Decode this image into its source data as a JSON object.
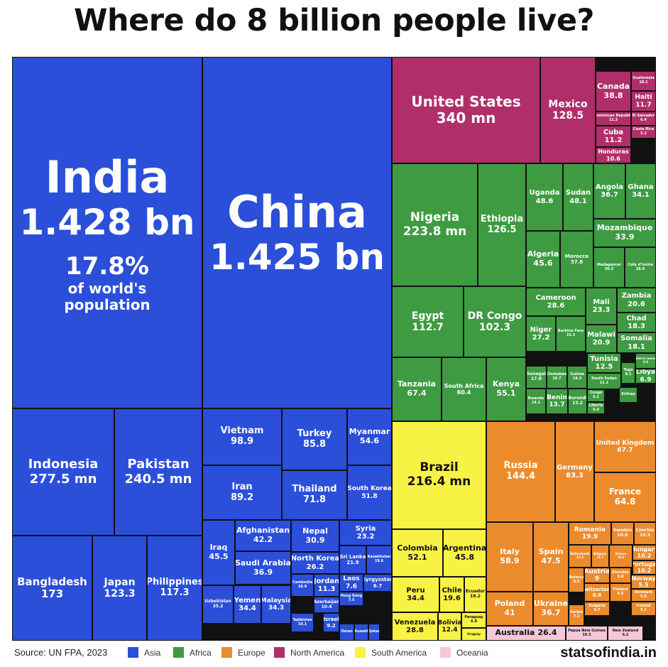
{
  "title": "Where do 8 billion people live?",
  "source": "Source: UN FPA, 2023",
  "brand": "statsofindia.in",
  "colors": {
    "Asia": "#2b4fd9",
    "Africa": "#3e9b42",
    "Europe": "#ec8b2c",
    "North America": "#b02f6a",
    "South America": "#f8f244",
    "Oceania": "#f7c7d7"
  },
  "legend": [
    "Asia",
    "Africa",
    "Europe",
    "North America",
    "South America",
    "Oceania"
  ],
  "chart_data": {
    "type": "treemap",
    "title": "Where do 8 billion people live?",
    "unit": "million people",
    "items": [
      {
        "name": "India",
        "value": 1428,
        "label": "1.428 bn",
        "note": [
          "17.8%",
          "of world's",
          "population"
        ],
        "region": "Asia"
      },
      {
        "name": "China",
        "value": 1425,
        "label": "1.425 bn",
        "region": "Asia"
      },
      {
        "name": "Indonesia",
        "value": 277.5,
        "label": "277.5 mn",
        "region": "Asia"
      },
      {
        "name": "Pakistan",
        "value": 240.5,
        "label": "240.5 mn",
        "region": "Asia"
      },
      {
        "name": "Bangladesh",
        "value": 173,
        "label": "173",
        "region": "Asia"
      },
      {
        "name": "Japan",
        "value": 123.3,
        "label": "123.3",
        "region": "Asia"
      },
      {
        "name": "Philippines",
        "value": 117.3,
        "label": "117.3",
        "region": "Asia"
      },
      {
        "name": "Vietnam",
        "value": 98.9,
        "label": "98.9",
        "region": "Asia"
      },
      {
        "name": "Turkey",
        "value": 85.8,
        "label": "85.8",
        "region": "Asia"
      },
      {
        "name": "Myanmar",
        "value": 54.6,
        "label": "54.6",
        "region": "Asia"
      },
      {
        "name": "Iran",
        "value": 89.2,
        "label": "89.2",
        "region": "Asia"
      },
      {
        "name": "Thailand",
        "value": 71.8,
        "label": "71.8",
        "region": "Asia"
      },
      {
        "name": "South Korea",
        "value": 51.8,
        "label": "51.8",
        "region": "Asia"
      },
      {
        "name": "Iraq",
        "value": 45.5,
        "label": "45.5",
        "region": "Asia"
      },
      {
        "name": "Afghanistan",
        "value": 42.2,
        "label": "42.2",
        "region": "Asia"
      },
      {
        "name": "Nepal",
        "value": 30.9,
        "label": "30.9",
        "region": "Asia"
      },
      {
        "name": "Syria",
        "value": 23.2,
        "label": "23.2",
        "region": "Asia"
      },
      {
        "name": "Saudi Arabia",
        "value": 36.9,
        "label": "36.9",
        "region": "Asia"
      },
      {
        "name": "North Korea",
        "value": 26.2,
        "label": "26.2",
        "region": "Asia"
      },
      {
        "name": "Sri Lanka",
        "value": 21.9,
        "label": "21.9",
        "region": "Asia"
      },
      {
        "name": "Kazakhstan",
        "value": 19.6,
        "label": "19.6",
        "region": "Asia"
      },
      {
        "name": "Jordan",
        "value": 11.3,
        "label": "11.3",
        "region": "Asia"
      },
      {
        "name": "Laos",
        "value": 7.6,
        "label": "7.6",
        "region": "Asia"
      },
      {
        "name": "Kyrgyzstan",
        "value": 6.7,
        "label": "6.7",
        "region": "Asia"
      },
      {
        "name": "Uzbekistan",
        "value": 35.2,
        "label": "35.2",
        "region": "Asia"
      },
      {
        "name": "Yemen",
        "value": 34.4,
        "label": "34.4",
        "region": "Asia"
      },
      {
        "name": "Malaysia",
        "value": 34.3,
        "label": "34.3",
        "region": "Asia"
      },
      {
        "name": "Cambodia",
        "value": 16.9,
        "label": "16.9",
        "region": "Asia"
      },
      {
        "name": "Azerbaijan",
        "value": 10.4,
        "label": "10.4",
        "region": "Asia"
      },
      {
        "name": "Hong Kong",
        "value": 7.5,
        "label": "7.5",
        "region": "Asia"
      },
      {
        "name": "Tajikistan",
        "value": 10.1,
        "label": "10.1",
        "region": "Asia"
      },
      {
        "name": "Israel",
        "value": 9.2,
        "label": "9.2",
        "region": "Asia"
      },
      {
        "name": "Oman",
        "value": null,
        "label": "",
        "region": "Asia"
      },
      {
        "name": "Kuwait",
        "value": null,
        "label": "",
        "region": "Asia"
      },
      {
        "name": "Qatar",
        "value": null,
        "label": "",
        "region": "Asia"
      },
      {
        "name": "United States",
        "value": 340,
        "label": "340 mn",
        "region": "North America"
      },
      {
        "name": "Mexico",
        "value": 128.5,
        "label": "128.5",
        "region": "North America"
      },
      {
        "name": "Canada",
        "value": 38.8,
        "label": "38.8",
        "region": "North America"
      },
      {
        "name": "Guatemala",
        "value": 18.1,
        "label": "18.1",
        "region": "North America"
      },
      {
        "name": "Haiti",
        "value": 11.7,
        "label": "11.7",
        "region": "North America"
      },
      {
        "name": "Dominican Republic",
        "value": 11.3,
        "label": "11.3",
        "region": "North America"
      },
      {
        "name": "El Salvador",
        "value": 6.4,
        "label": "6.4",
        "region": "North America"
      },
      {
        "name": "Cuba",
        "value": 11.2,
        "label": "11.2",
        "region": "North America"
      },
      {
        "name": "Honduras",
        "value": 10.6,
        "label": "10.6",
        "region": "North America"
      },
      {
        "name": "Costa Rica",
        "value": 5.2,
        "label": "5.2",
        "region": "North America"
      },
      {
        "name": "Nigeria",
        "value": 223.8,
        "label": "223.8 mn",
        "region": "Africa"
      },
      {
        "name": "Ethiopia",
        "value": 126.5,
        "label": "126.5",
        "region": "Africa"
      },
      {
        "name": "Uganda",
        "value": 48.6,
        "label": "48.6",
        "region": "Africa"
      },
      {
        "name": "Sudan",
        "value": 48.1,
        "label": "48.1",
        "region": "Africa"
      },
      {
        "name": "Angola",
        "value": 36.7,
        "label": "36.7",
        "region": "Africa"
      },
      {
        "name": "Ghana",
        "value": 34.1,
        "label": "34.1",
        "region": "Africa"
      },
      {
        "name": "Mozambique",
        "value": 33.9,
        "label": "33.9",
        "region": "Africa"
      },
      {
        "name": "Algeria",
        "value": 45.6,
        "label": "45.6",
        "region": "Africa"
      },
      {
        "name": "Morocco",
        "value": 37.8,
        "label": "37.8",
        "region": "Africa"
      },
      {
        "name": "Madagascar",
        "value": 30.3,
        "label": "30.3",
        "region": "Africa"
      },
      {
        "name": "Cote d'Ivoire",
        "value": 28.9,
        "label": "28.9",
        "region": "Africa"
      },
      {
        "name": "Egypt",
        "value": 112.7,
        "label": "112.7",
        "region": "Africa"
      },
      {
        "name": "DR Congo",
        "value": 102.3,
        "label": "102.3",
        "region": "Africa"
      },
      {
        "name": "Cameroon",
        "value": 28.6,
        "label": "28.6",
        "region": "Africa"
      },
      {
        "name": "Mali",
        "value": 23.3,
        "label": "23.3",
        "region": "Africa"
      },
      {
        "name": "Zambia",
        "value": 20.6,
        "label": "20.6",
        "region": "Africa"
      },
      {
        "name": "Niger",
        "value": 27.2,
        "label": "27.2",
        "region": "Africa"
      },
      {
        "name": "Burkina Faso",
        "value": 23.3,
        "label": "23.3",
        "region": "Africa"
      },
      {
        "name": "Malawi",
        "value": 20.9,
        "label": "20.9",
        "region": "Africa"
      },
      {
        "name": "Chad",
        "value": 18.3,
        "label": "18.3",
        "region": "Africa"
      },
      {
        "name": "Somalia",
        "value": 18.1,
        "label": "18.1",
        "region": "Africa"
      },
      {
        "name": "Tanzania",
        "value": 67.4,
        "label": "67.4",
        "region": "Africa"
      },
      {
        "name": "South Africa",
        "value": 60.4,
        "label": "60.4",
        "region": "Africa"
      },
      {
        "name": "Kenya",
        "value": 55.1,
        "label": "55.1",
        "region": "Africa"
      },
      {
        "name": "Senegal",
        "value": 17.8,
        "label": "17.8",
        "region": "Africa"
      },
      {
        "name": "Zimbabwe",
        "value": 16.7,
        "label": "16.7",
        "region": "Africa"
      },
      {
        "name": "Guinea",
        "value": 14.2,
        "label": "14.2",
        "region": "Africa"
      },
      {
        "name": "Tunisia",
        "value": 12.5,
        "label": "12.5",
        "region": "Africa"
      },
      {
        "name": "Togo",
        "value": 9.1,
        "label": "9.1",
        "region": "Africa"
      },
      {
        "name": "Rwanda",
        "value": 14.1,
        "label": "14.1",
        "region": "Africa"
      },
      {
        "name": "Benin",
        "value": 13.7,
        "label": "13.7",
        "region": "Africa"
      },
      {
        "name": "Burundi",
        "value": 13.2,
        "label": "13.2",
        "region": "Africa"
      },
      {
        "name": "South Sudan",
        "value": 11.1,
        "label": "11.1",
        "region": "Africa"
      },
      {
        "name": "Sierra Leone",
        "value": 8.8,
        "label": "8.8",
        "region": "Africa"
      },
      {
        "name": "Libya",
        "value": 6.9,
        "label": "6.9",
        "region": "Africa"
      },
      {
        "name": "Congo",
        "value": 6.1,
        "label": "6.1",
        "region": "Africa"
      },
      {
        "name": "Liberia",
        "value": 5.4,
        "label": "5.4",
        "region": "Africa"
      },
      {
        "name": "Eritrea",
        "value": null,
        "label": "",
        "region": "Africa"
      },
      {
        "name": "Brazil",
        "value": 216.4,
        "label": "216.4 mn",
        "region": "South America"
      },
      {
        "name": "Colombia",
        "value": 52.1,
        "label": "52.1",
        "region": "South America"
      },
      {
        "name": "Argentina",
        "value": 45.8,
        "label": "45.8",
        "region": "South America"
      },
      {
        "name": "Peru",
        "value": 34.4,
        "label": "34.4",
        "region": "South America"
      },
      {
        "name": "Chile",
        "value": 19.6,
        "label": "19.6",
        "region": "South America"
      },
      {
        "name": "Ecuador",
        "value": 18.2,
        "label": "18.2",
        "region": "South America"
      },
      {
        "name": "Venezuela",
        "value": 28.8,
        "label": "28.8",
        "region": "South America"
      },
      {
        "name": "Bolivia",
        "value": 12.4,
        "label": "12.4",
        "region": "South America"
      },
      {
        "name": "Paraguay",
        "value": 6.9,
        "label": "6.9",
        "region": "South America"
      },
      {
        "name": "Uruguay",
        "value": null,
        "label": "",
        "region": "South America"
      },
      {
        "name": "Russia",
        "value": 144.4,
        "label": "144.4",
        "region": "Europe"
      },
      {
        "name": "Germany",
        "value": 83.3,
        "label": "83.3",
        "region": "Europe"
      },
      {
        "name": "United Kingdom",
        "value": 67.7,
        "label": "67.7",
        "region": "Europe"
      },
      {
        "name": "France",
        "value": 64.8,
        "label": "64.8",
        "region": "Europe"
      },
      {
        "name": "Italy",
        "value": 58.9,
        "label": "58.9",
        "region": "Europe"
      },
      {
        "name": "Spain",
        "value": 47.5,
        "label": "47.5",
        "region": "Europe"
      },
      {
        "name": "Romania",
        "value": 19.9,
        "label": "19.9",
        "region": "Europe"
      },
      {
        "name": "Sweden",
        "value": 10.6,
        "label": "10.6",
        "region": "Europe"
      },
      {
        "name": "Czechia",
        "value": 10.5,
        "label": "10.5",
        "region": "Europe"
      },
      {
        "name": "Netherlands",
        "value": 17.6,
        "label": "17.6",
        "region": "Europe"
      },
      {
        "name": "Belgium",
        "value": 11.7,
        "label": "11.7",
        "region": "Europe"
      },
      {
        "name": "Greece",
        "value": 10.3,
        "label": "10.3",
        "region": "Europe"
      },
      {
        "name": "Hungary",
        "value": 10.2,
        "label": "10.2",
        "region": "Europe"
      },
      {
        "name": "Portugal",
        "value": 10.2,
        "label": "10.2",
        "region": "Europe"
      },
      {
        "name": "Poland",
        "value": 41,
        "label": "41",
        "region": "Europe"
      },
      {
        "name": "Ukraine",
        "value": 36.7,
        "label": "36.7",
        "region": "Europe"
      },
      {
        "name": "Austria",
        "value": 9,
        "label": "9",
        "region": "Europe"
      },
      {
        "name": "Slovakia",
        "value": 5.8,
        "label": "5.8",
        "region": "Europe"
      },
      {
        "name": "Norway",
        "value": 5.5,
        "label": "5.5",
        "region": "Europe"
      },
      {
        "name": "Belarus",
        "value": 9.5,
        "label": "9.5",
        "region": "Europe"
      },
      {
        "name": "Switzerland",
        "value": 8.8,
        "label": "8.8",
        "region": "Europe"
      },
      {
        "name": "Serbia",
        "value": 7.1,
        "label": "7.1",
        "region": "Europe"
      },
      {
        "name": "Bulgaria",
        "value": 6.7,
        "label": "6.7",
        "region": "Europe"
      },
      {
        "name": "Denmark",
        "value": 5.9,
        "label": "5.9",
        "region": "Europe"
      },
      {
        "name": "Finland",
        "value": 5.5,
        "label": "5.5",
        "region": "Europe"
      },
      {
        "name": "Ireland",
        "value": 5.1,
        "label": "5.1",
        "region": "Europe"
      },
      {
        "name": "Australia",
        "value": 26.4,
        "label": "26.4",
        "region": "Oceania"
      },
      {
        "name": "Papua New Guinea",
        "value": 10.3,
        "label": "10.3",
        "region": "Oceania"
      },
      {
        "name": "New Zealand",
        "value": 5.2,
        "label": "5.2",
        "region": "Oceania"
      }
    ]
  }
}
